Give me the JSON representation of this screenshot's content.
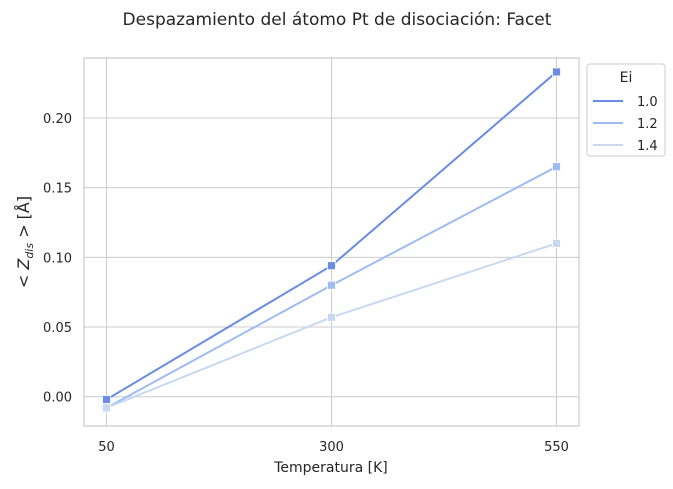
{
  "chart_data": {
    "type": "line",
    "title": "Despazamiento del átomo Pt de disociación: Facet",
    "xlabel": "Temperatura [K]",
    "ylabel_parts": {
      "prefix": "< Z",
      "subscript": "dis",
      "suffix": " > [Å]"
    },
    "x": [
      50,
      300,
      550
    ],
    "x_ticks": [
      "50",
      "300",
      "550"
    ],
    "y_ticks": [
      0.0,
      0.05,
      0.1,
      0.15,
      0.2
    ],
    "y_tick_labels": [
      "0.00",
      "0.05",
      "0.10",
      "0.15",
      "0.20"
    ],
    "xlim": [
      25,
      575
    ],
    "ylim": [
      -0.021,
      0.243
    ],
    "grid": true,
    "legend": {
      "title": "Ei",
      "placement": "outside-top-right"
    },
    "series": [
      {
        "name": "1.0",
        "values": [
          -0.002,
          0.094,
          0.233
        ],
        "color": "#6a8ce4"
      },
      {
        "name": "1.2",
        "values": [
          -0.008,
          0.08,
          0.165
        ],
        "color": "#9fbbf3"
      },
      {
        "name": "1.4",
        "values": [
          -0.008,
          0.057,
          0.11
        ],
        "color": "#c7d8f0"
      }
    ]
  }
}
